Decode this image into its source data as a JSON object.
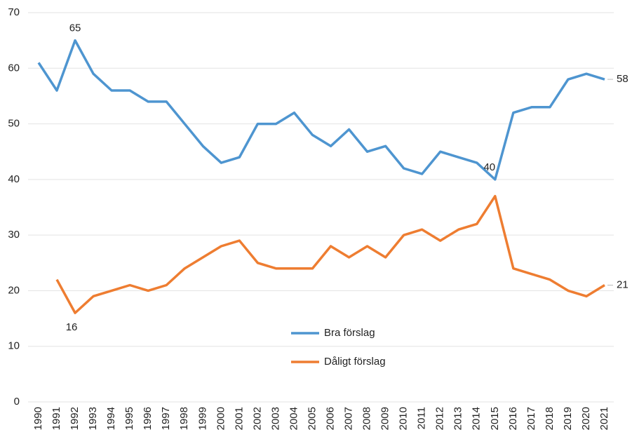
{
  "chart_data": {
    "type": "line",
    "x": [
      "1990",
      "1991",
      "1992",
      "1993",
      "1994",
      "1995",
      "1996",
      "1997",
      "1998",
      "1999",
      "2000",
      "2001",
      "2002",
      "2003",
      "2004",
      "2005",
      "2006",
      "2007",
      "2008",
      "2009",
      "2010",
      "2011",
      "2012",
      "2013",
      "2014",
      "2015",
      "2016",
      "2017",
      "2018",
      "2019",
      "2020",
      "2021"
    ],
    "series": [
      {
        "name": "Bra förslag",
        "color": "#4e95d0",
        "values": [
          61,
          56,
          65,
          59,
          56,
          56,
          54,
          54,
          50,
          46,
          43,
          44,
          50,
          50,
          52,
          48,
          46,
          49,
          45,
          46,
          42,
          41,
          45,
          44,
          43,
          40,
          52,
          53,
          53,
          58,
          59,
          58
        ],
        "data_labels": [
          {
            "index": 2,
            "position": "above"
          },
          {
            "index": 25,
            "position": "above"
          },
          {
            "index": 31,
            "position": "right"
          }
        ]
      },
      {
        "name": "Dåligt förslag",
        "color": "#ee7d31",
        "values": [
          null,
          22,
          16,
          19,
          20,
          21,
          20,
          21,
          24,
          26,
          28,
          29,
          25,
          24,
          24,
          24,
          28,
          26,
          28,
          26,
          30,
          31,
          29,
          31,
          32,
          37,
          24,
          23,
          22,
          20,
          19,
          21
        ],
        "data_labels": [
          {
            "index": 2,
            "position": "below"
          },
          {
            "index": 31,
            "position": "right"
          }
        ]
      }
    ],
    "ylim": [
      0,
      70
    ],
    "yticks": [
      0,
      10,
      20,
      30,
      40,
      50,
      60,
      70
    ],
    "grid": true,
    "legend": "center"
  }
}
